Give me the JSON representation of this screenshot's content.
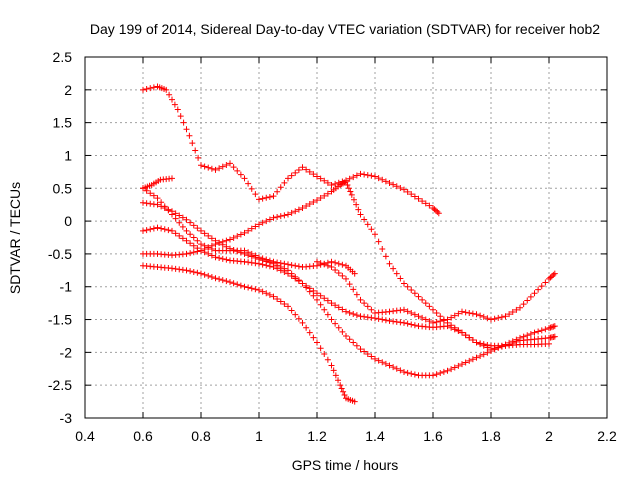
{
  "chart_data": {
    "type": "scatter",
    "title": "Day 199 of 2014, Sidereal Day-to-day VTEC variation (SDTVAR) for receiver hob2",
    "xlabel": "GPS time / hours",
    "ylabel": "SDTVAR / TECUs",
    "xlim": [
      0.4,
      2.2
    ],
    "ylim": [
      -3,
      2.5
    ],
    "xticks": [
      0.4,
      0.6,
      0.8,
      1,
      1.2,
      1.4,
      1.6,
      1.8,
      2,
      2.2
    ],
    "yticks": [
      -3,
      -2.5,
      -2,
      -1.5,
      -1,
      -0.5,
      0,
      0.5,
      1,
      1.5,
      2,
      2.5
    ],
    "xtick_labels": [
      "0.4",
      "0.6",
      "0.8",
      "1",
      "1.2",
      "1.4",
      "1.6",
      "1.8",
      "2",
      "2.2"
    ],
    "ytick_labels": [
      "-3",
      "-2.5",
      "-2",
      "-1.5",
      "-1",
      "-0.5",
      "0",
      "0.5",
      "1",
      "1.5",
      "2",
      "2.5"
    ],
    "grid": true,
    "marker": "+",
    "color": "#ff0000",
    "series": [
      {
        "name": "s1",
        "points": [
          [
            0.6,
            2.0
          ],
          [
            0.65,
            2.05
          ],
          [
            0.68,
            2.0
          ],
          [
            0.72,
            1.7
          ],
          [
            0.76,
            1.3
          ],
          [
            0.8,
            0.85
          ],
          [
            0.85,
            0.78
          ],
          [
            0.9,
            0.88
          ],
          [
            0.95,
            0.65
          ],
          [
            1.0,
            0.33
          ],
          [
            1.05,
            0.38
          ],
          [
            1.1,
            0.65
          ],
          [
            1.15,
            0.82
          ],
          [
            1.2,
            0.68
          ],
          [
            1.25,
            0.55
          ],
          [
            1.3,
            0.62
          ],
          [
            1.35,
            0.72
          ],
          [
            1.4,
            0.68
          ],
          [
            1.45,
            0.58
          ],
          [
            1.5,
            0.48
          ],
          [
            1.55,
            0.34
          ],
          [
            1.6,
            0.2
          ],
          [
            1.62,
            0.12
          ]
        ]
      },
      {
        "name": "s2",
        "points": [
          [
            0.6,
            0.5
          ],
          [
            0.63,
            0.55
          ],
          [
            0.66,
            0.63
          ],
          [
            0.7,
            0.65
          ]
        ]
      },
      {
        "name": "s3",
        "points": [
          [
            0.6,
            0.5
          ],
          [
            0.65,
            0.35
          ],
          [
            0.7,
            0.1
          ],
          [
            0.75,
            -0.15
          ],
          [
            0.8,
            -0.35
          ],
          [
            0.85,
            -0.45
          ],
          [
            0.9,
            -0.45
          ],
          [
            0.95,
            -0.45
          ],
          [
            1.0,
            -0.55
          ],
          [
            1.05,
            -0.62
          ],
          [
            1.1,
            -0.66
          ],
          [
            1.15,
            -0.7
          ],
          [
            1.2,
            -0.68
          ],
          [
            1.25,
            -0.62
          ],
          [
            1.3,
            -0.68
          ],
          [
            1.33,
            -0.8
          ]
        ]
      },
      {
        "name": "s4",
        "points": [
          [
            0.6,
            0.28
          ],
          [
            0.65,
            0.25
          ],
          [
            0.7,
            0.15
          ],
          [
            0.75,
            0.02
          ],
          [
            0.8,
            -0.15
          ],
          [
            0.85,
            -0.3
          ],
          [
            0.9,
            -0.42
          ],
          [
            0.95,
            -0.5
          ],
          [
            1.0,
            -0.58
          ],
          [
            1.05,
            -0.65
          ],
          [
            1.1,
            -0.75
          ],
          [
            1.15,
            -0.95
          ],
          [
            1.2,
            -1.2
          ],
          [
            1.25,
            -1.5
          ],
          [
            1.3,
            -1.75
          ],
          [
            1.35,
            -1.95
          ],
          [
            1.4,
            -2.1
          ],
          [
            1.45,
            -2.2
          ],
          [
            1.5,
            -2.3
          ],
          [
            1.55,
            -2.35
          ],
          [
            1.6,
            -2.35
          ],
          [
            1.65,
            -2.28
          ],
          [
            1.7,
            -2.18
          ],
          [
            1.75,
            -2.08
          ],
          [
            1.8,
            -1.98
          ],
          [
            1.85,
            -1.88
          ],
          [
            1.9,
            -1.78
          ],
          [
            1.95,
            -1.7
          ],
          [
            2.0,
            -1.63
          ],
          [
            2.02,
            -1.6
          ]
        ]
      },
      {
        "name": "s5",
        "points": [
          [
            0.6,
            -0.15
          ],
          [
            0.65,
            -0.1
          ],
          [
            0.7,
            -0.15
          ],
          [
            0.75,
            -0.3
          ],
          [
            0.8,
            -0.45
          ],
          [
            0.85,
            -0.55
          ],
          [
            0.9,
            -0.6
          ],
          [
            0.95,
            -0.62
          ],
          [
            1.0,
            -0.65
          ],
          [
            1.05,
            -0.7
          ],
          [
            1.1,
            -0.8
          ],
          [
            1.15,
            -0.95
          ],
          [
            1.2,
            -1.1
          ],
          [
            1.25,
            -1.25
          ],
          [
            1.3,
            -1.38
          ],
          [
            1.35,
            -1.45
          ],
          [
            1.4,
            -1.48
          ],
          [
            1.45,
            -1.52
          ],
          [
            1.5,
            -1.55
          ],
          [
            1.55,
            -1.6
          ],
          [
            1.6,
            -1.62
          ],
          [
            1.65,
            -1.6
          ],
          [
            1.7,
            -1.7
          ],
          [
            1.75,
            -1.85
          ],
          [
            1.8,
            -1.95
          ],
          [
            1.85,
            -1.9
          ],
          [
            1.9,
            -1.82
          ],
          [
            1.95,
            -1.8
          ],
          [
            2.0,
            -1.78
          ],
          [
            2.02,
            -1.76
          ]
        ]
      },
      {
        "name": "s6",
        "points": [
          [
            0.6,
            -0.5
          ],
          [
            0.65,
            -0.5
          ],
          [
            0.7,
            -0.52
          ],
          [
            0.75,
            -0.5
          ],
          [
            0.8,
            -0.45
          ],
          [
            0.85,
            -0.35
          ],
          [
            0.9,
            -0.28
          ],
          [
            0.95,
            -0.18
          ],
          [
            1.0,
            -0.05
          ],
          [
            1.05,
            0.05
          ],
          [
            1.1,
            0.1
          ],
          [
            1.15,
            0.2
          ],
          [
            1.2,
            0.32
          ],
          [
            1.25,
            0.45
          ],
          [
            1.28,
            0.55
          ],
          [
            1.3,
            0.6
          ],
          [
            1.32,
            0.4
          ],
          [
            1.35,
            0.1
          ],
          [
            1.4,
            -0.2
          ],
          [
            1.45,
            -0.65
          ],
          [
            1.5,
            -0.95
          ],
          [
            1.55,
            -1.15
          ],
          [
            1.6,
            -1.35
          ],
          [
            1.65,
            -1.55
          ],
          [
            1.7,
            -1.7
          ],
          [
            1.75,
            -1.85
          ],
          [
            1.8,
            -1.9
          ],
          [
            1.85,
            -1.9
          ],
          [
            1.9,
            -1.88
          ],
          [
            1.95,
            -1.88
          ],
          [
            2.0,
            -1.87
          ]
        ]
      },
      {
        "name": "s7",
        "points": [
          [
            0.6,
            -0.68
          ],
          [
            0.65,
            -0.7
          ],
          [
            0.7,
            -0.72
          ],
          [
            0.75,
            -0.75
          ],
          [
            0.8,
            -0.8
          ],
          [
            0.85,
            -0.87
          ],
          [
            0.9,
            -0.93
          ],
          [
            0.95,
            -1.0
          ],
          [
            1.0,
            -1.05
          ],
          [
            1.05,
            -1.15
          ],
          [
            1.1,
            -1.3
          ],
          [
            1.15,
            -1.55
          ],
          [
            1.2,
            -1.85
          ],
          [
            1.25,
            -2.2
          ],
          [
            1.28,
            -2.5
          ],
          [
            1.3,
            -2.7
          ],
          [
            1.33,
            -2.75
          ]
        ]
      },
      {
        "name": "s8",
        "points": [
          [
            1.2,
            -0.62
          ],
          [
            1.25,
            -0.7
          ],
          [
            1.3,
            -0.88
          ],
          [
            1.35,
            -1.2
          ],
          [
            1.4,
            -1.4
          ],
          [
            1.45,
            -1.38
          ],
          [
            1.5,
            -1.35
          ],
          [
            1.55,
            -1.45
          ],
          [
            1.6,
            -1.55
          ],
          [
            1.65,
            -1.5
          ],
          [
            1.7,
            -1.38
          ],
          [
            1.75,
            -1.42
          ],
          [
            1.8,
            -1.5
          ],
          [
            1.85,
            -1.45
          ],
          [
            1.9,
            -1.32
          ],
          [
            1.95,
            -1.1
          ],
          [
            2.0,
            -0.88
          ],
          [
            2.02,
            -0.8
          ]
        ]
      }
    ]
  }
}
